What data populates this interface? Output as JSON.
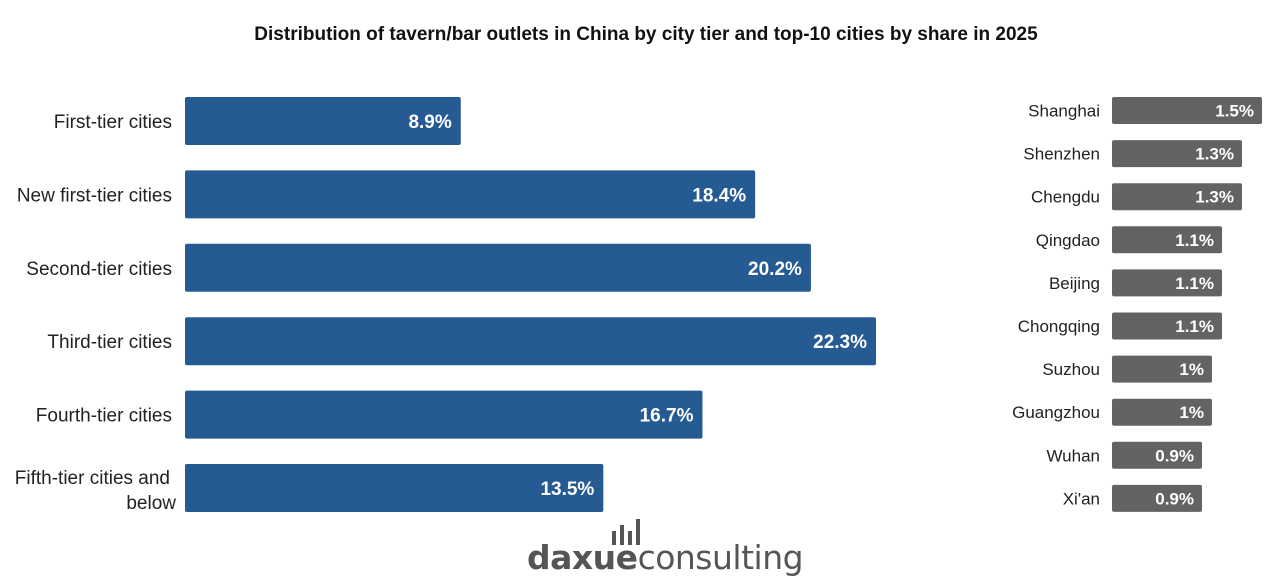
{
  "chart_data": [
    {
      "type": "bar",
      "orientation": "horizontal",
      "title": "Distribution of tavern/bar outlets in China by city tier and top-10 cities by share in 2025",
      "categories": [
        [
          "First-tier cities"
        ],
        [
          "New first-tier cities"
        ],
        [
          "Second-tier cities"
        ],
        [
          "Third-tier cities"
        ],
        [
          "Fourth-tier cities"
        ],
        [
          "Fifth-tier cities and",
          "below"
        ]
      ],
      "values": [
        8.9,
        18.4,
        20.2,
        22.3,
        16.7,
        13.5
      ],
      "value_labels": [
        "8.9%",
        "18.4%",
        "20.2%",
        "22.3%",
        "16.7%",
        "13.5%"
      ],
      "unit": "%",
      "color": "#255a93",
      "xlim": [
        0,
        22.3
      ]
    },
    {
      "type": "bar",
      "orientation": "horizontal",
      "categories": [
        "Shanghai",
        "Shenzhen",
        "Chengdu",
        "Qingdao",
        "Beijing",
        "Chongqing",
        "Suzhou",
        "Guangzhou",
        "Wuhan",
        "Xi'an"
      ],
      "values": [
        1.5,
        1.3,
        1.3,
        1.1,
        1.1,
        1.1,
        1.0,
        1.0,
        0.9,
        0.9
      ],
      "value_labels": [
        "1.5%",
        "1.3%",
        "1.3%",
        "1.1%",
        "1.1%",
        "1.1%",
        "1%",
        "1%",
        "0.9%",
        "0.9%"
      ],
      "unit": "%",
      "color": "#636363",
      "xlim": [
        0,
        1.5
      ]
    }
  ],
  "logo": {
    "part1": "daxue",
    "part2": "consulting",
    "color": "#555555"
  }
}
